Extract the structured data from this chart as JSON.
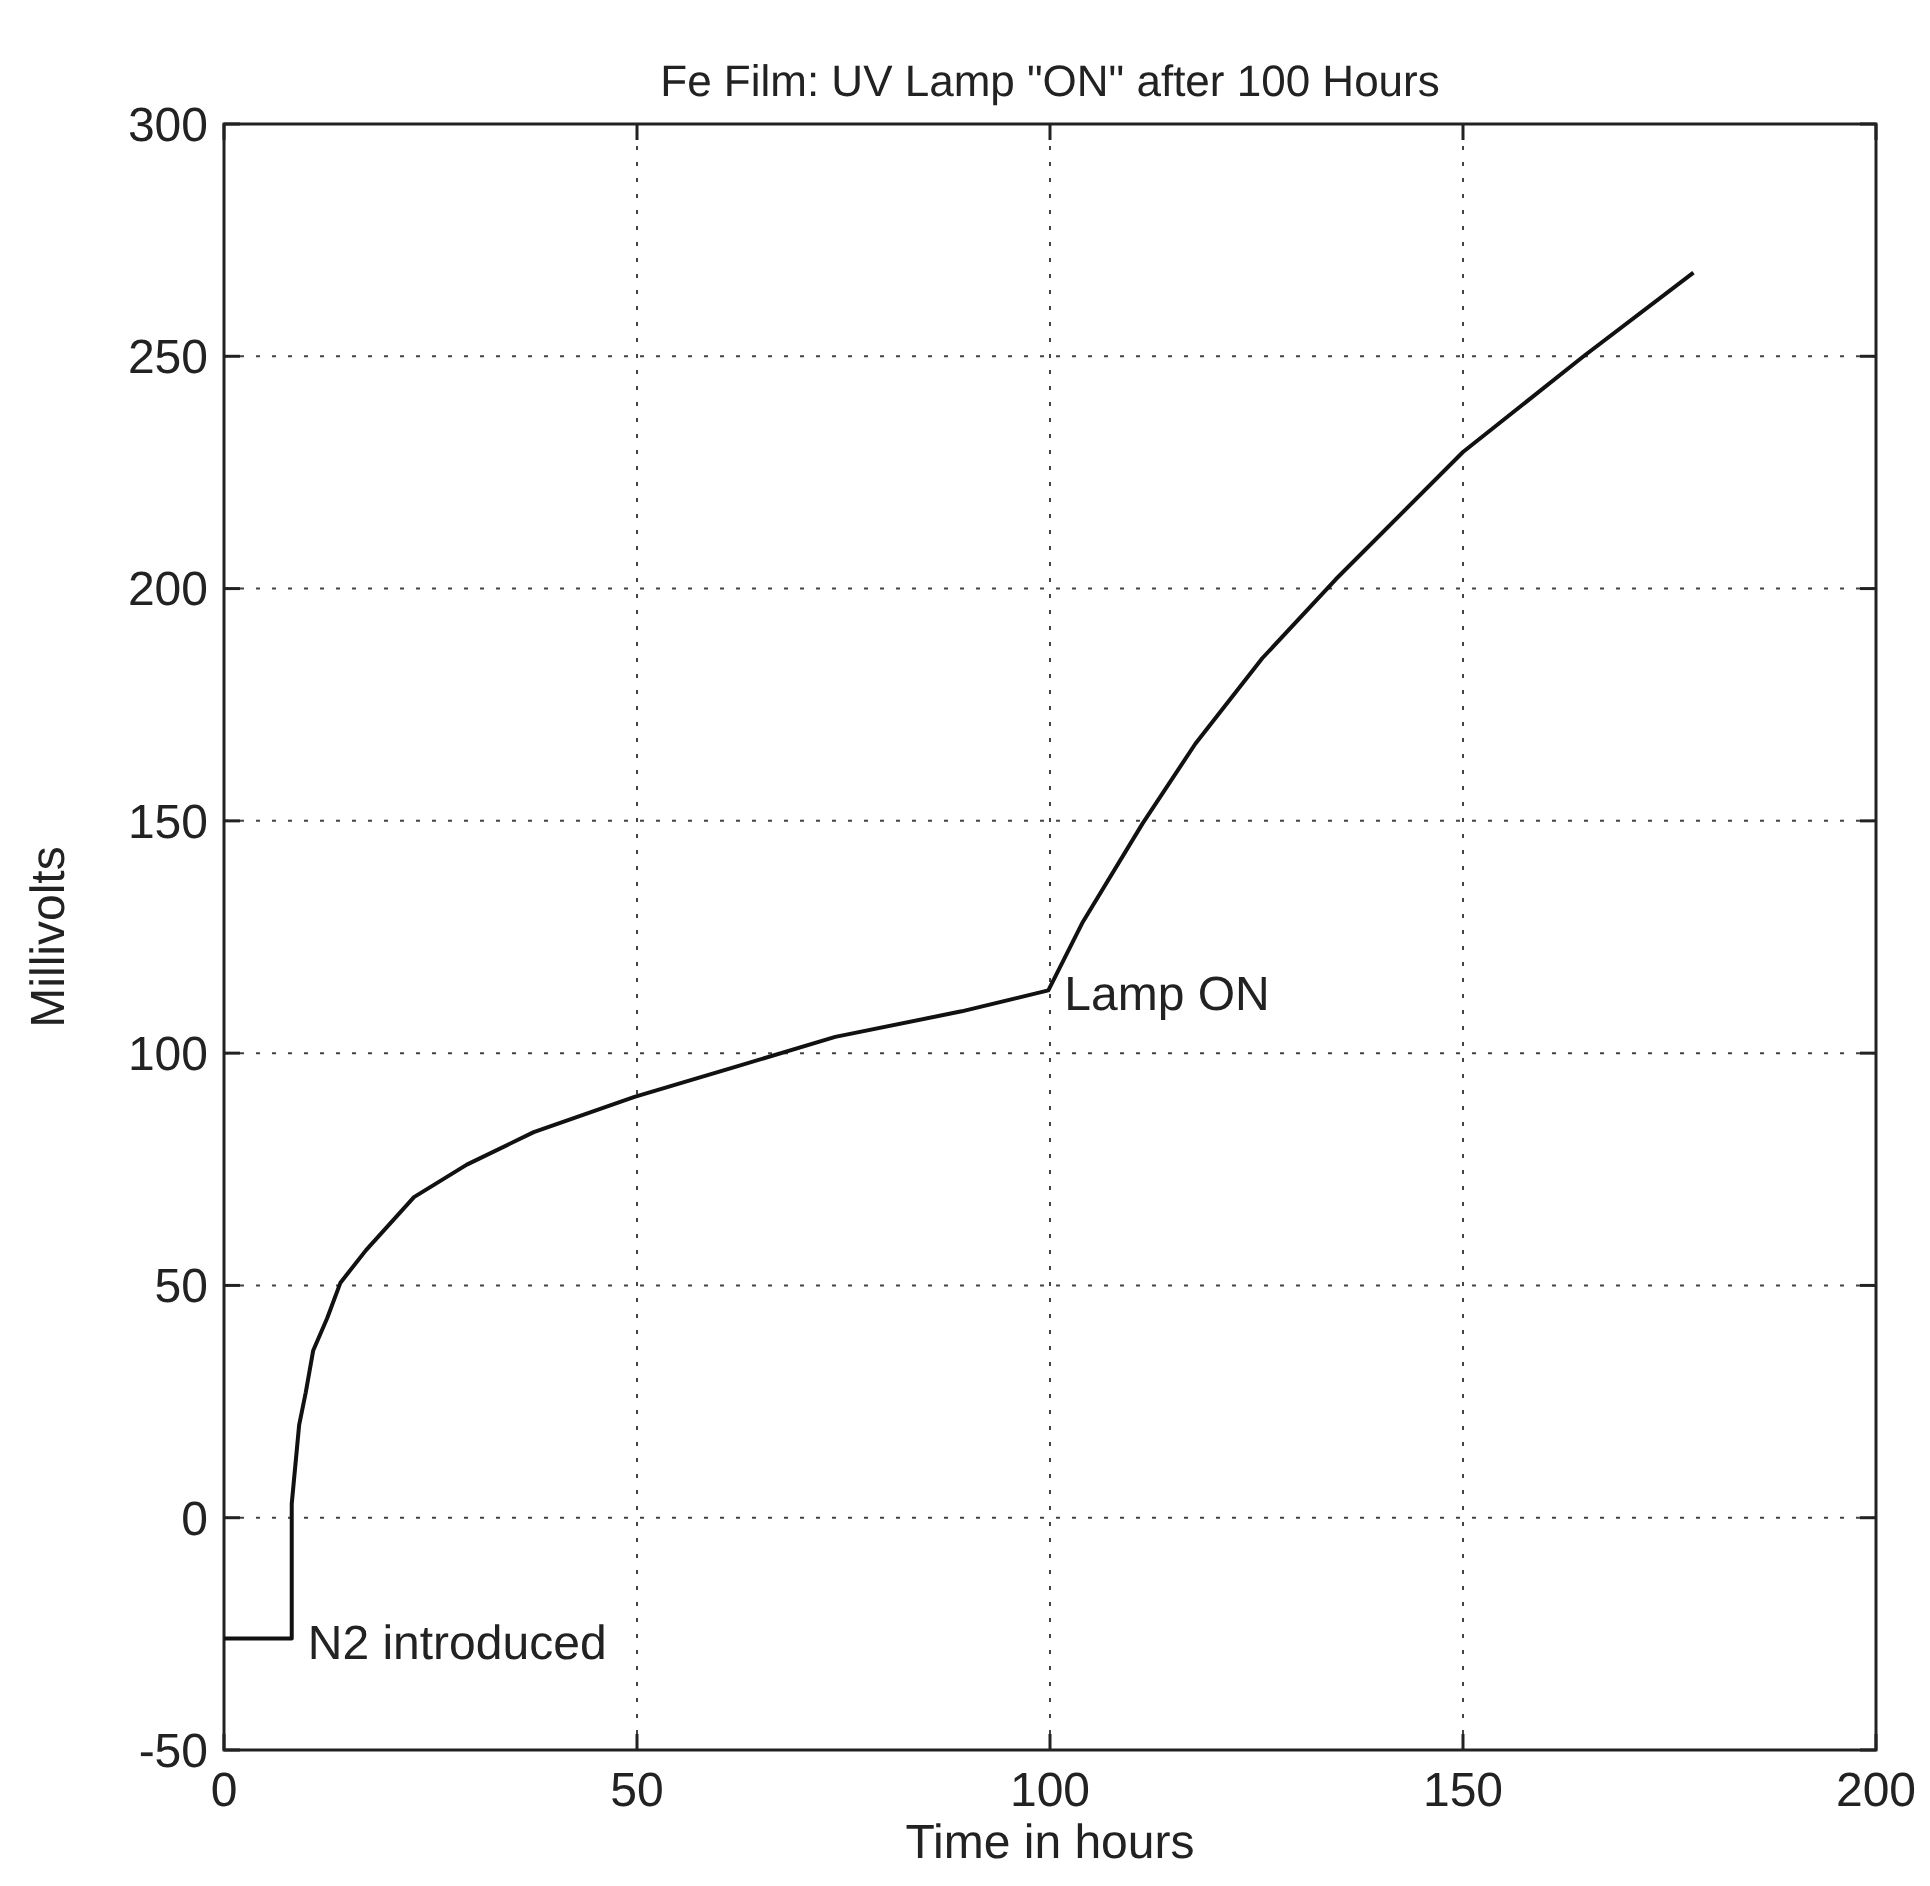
{
  "chart_data": {
    "type": "line",
    "title": "Fe Film:  UV Lamp \"ON\" after 100 Hours",
    "xlabel": "Time in hours",
    "ylabel": "Millivolts",
    "xlim": [
      0,
      200
    ],
    "xticks": [
      0,
      50,
      100,
      150,
      200
    ],
    "ylim": [
      -50,
      300
    ],
    "yticks": [
      -50,
      0,
      50,
      100,
      150,
      200,
      250,
      300
    ],
    "grid": true,
    "series": [
      {
        "color": "#111111",
        "x": [
          0,
          8.2,
          8.2,
          9.1,
          9.9,
          10.8,
          12.5,
          14.1,
          17.2,
          23,
          29.4,
          37.5,
          49.7,
          61.8,
          74,
          89.3,
          99.8,
          103.9,
          111.2,
          117.6,
          125.7,
          134.6,
          150,
          164.6,
          177.9
        ],
        "values": [
          -26,
          -26,
          3,
          20,
          27,
          36,
          43,
          50.6,
          57.6,
          69,
          76,
          83,
          90.6,
          97,
          103.5,
          109,
          113.5,
          128,
          149.4,
          166.6,
          185,
          202,
          229.4,
          250,
          268
        ]
      }
    ],
    "annotations": [
      {
        "text": "N2 introduced",
        "x": 8.2,
        "y": -26
      },
      {
        "text": "Lamp ON",
        "x": 99.8,
        "y": 113.5
      }
    ]
  }
}
